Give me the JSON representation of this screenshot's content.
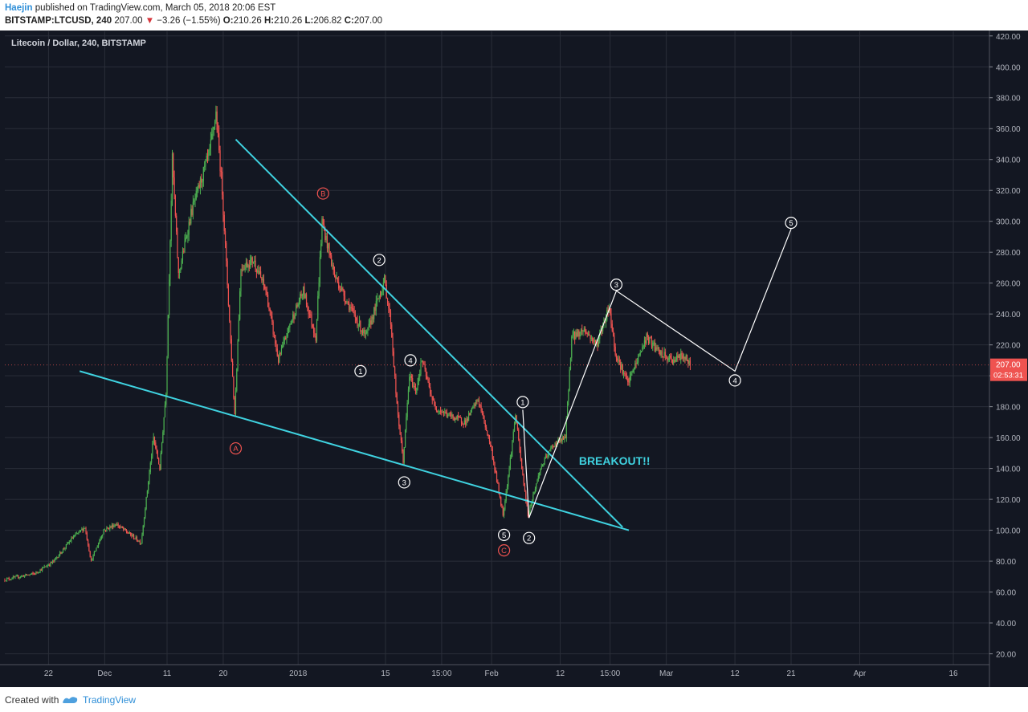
{
  "header": {
    "author": "Haejin",
    "published_text": "published on TradingView.com, March 05, 2018 20:06 EST",
    "symbol": "BITSTAMP:LTCUSD, 240",
    "last": "207.00",
    "change": "−3.26 (−1.55%)",
    "open_label": "O:",
    "open": "210.26",
    "high_label": "H:",
    "high": "210.26",
    "low_label": "L:",
    "low": "206.82",
    "close_label": "C:",
    "close": "207.00"
  },
  "footer": {
    "created_with": "Created with",
    "brand": "TradingView"
  },
  "colors": {
    "background": "#131722",
    "grid": "#2a2e39",
    "up": "#4caf50",
    "down": "#ef5350",
    "trendline": "#3fd2e0",
    "wave": "#ffffff",
    "corrective": "#ef5350",
    "price_tag": "#ef5350"
  },
  "chart_data": {
    "type": "candlestick",
    "title": "Litecoin / Dollar, 240, BITSTAMP",
    "ylim": [
      13,
      423
    ],
    "y_ticks": [
      20,
      40,
      60,
      80,
      100,
      120,
      140,
      160,
      180,
      200,
      220,
      240,
      260,
      280,
      300,
      320,
      340,
      360,
      380,
      400,
      420
    ],
    "y_tick_labels": [
      "20.00",
      "40.00",
      "60.00",
      "80.00",
      "100.00",
      "120.00",
      "140.00",
      "160.00",
      "180.00",
      "200.00",
      "220.00",
      "240.00",
      "260.00",
      "280.00",
      "300.00",
      "320.00",
      "340.00",
      "360.00",
      "380.00",
      "400.00",
      "420.00"
    ],
    "x_start": "2017-11-15",
    "x_ticks": [
      {
        "date": "2017-11-22",
        "label": "22"
      },
      {
        "date": "2017-12-01",
        "label": "Dec"
      },
      {
        "date": "2017-12-11",
        "label": "11"
      },
      {
        "date": "2017-12-20",
        "label": "20"
      },
      {
        "date": "2018-01-01",
        "label": "2018"
      },
      {
        "date": "2018-01-15",
        "label": "15"
      },
      {
        "date": "2018-01-24",
        "label": "15:00"
      },
      {
        "date": "2018-02-01",
        "label": "Feb"
      },
      {
        "date": "2018-02-12",
        "label": "12"
      },
      {
        "date": "2018-02-20",
        "label": "15:00"
      },
      {
        "date": "2018-03-01",
        "label": "Mar"
      },
      {
        "date": "2018-03-12",
        "label": "12"
      },
      {
        "date": "2018-03-21",
        "label": "21"
      },
      {
        "date": "2018-04-01",
        "label": "Apr"
      },
      {
        "date": "2018-04-16",
        "label": "16"
      }
    ],
    "price_path": [
      [
        "2017-11-15",
        68
      ],
      [
        "2017-11-20",
        72
      ],
      [
        "2017-11-23",
        80
      ],
      [
        "2017-11-26",
        95
      ],
      [
        "2017-11-28",
        102
      ],
      [
        "2017-11-29",
        80
      ],
      [
        "2017-12-01",
        100
      ],
      [
        "2017-12-03",
        104
      ],
      [
        "2017-12-05",
        98
      ],
      [
        "2017-12-07",
        92
      ],
      [
        "2017-12-09",
        160
      ],
      [
        "2017-12-10",
        140
      ],
      [
        "2017-12-11",
        190
      ],
      [
        "2017-12-12",
        340
      ],
      [
        "2017-12-13",
        265
      ],
      [
        "2017-12-15",
        305
      ],
      [
        "2017-12-18",
        345
      ],
      [
        "2017-12-19",
        370
      ],
      [
        "2017-12-20",
        320
      ],
      [
        "2017-12-22",
        175
      ],
      [
        "2017-12-23",
        270
      ],
      [
        "2017-12-25",
        275
      ],
      [
        "2017-12-27",
        255
      ],
      [
        "2017-12-29",
        210
      ],
      [
        "2017-12-31",
        235
      ],
      [
        "2018-01-02",
        255
      ],
      [
        "2018-01-04",
        225
      ],
      [
        "2018-01-05",
        300
      ],
      [
        "2018-01-07",
        265
      ],
      [
        "2018-01-10",
        240
      ],
      [
        "2018-01-12",
        225
      ],
      [
        "2018-01-14",
        250
      ],
      [
        "2018-01-15",
        262
      ],
      [
        "2018-01-16",
        235
      ],
      [
        "2018-01-17",
        180
      ],
      [
        "2018-01-18",
        145
      ],
      [
        "2018-01-19",
        200
      ],
      [
        "2018-01-20",
        190
      ],
      [
        "2018-01-21",
        210
      ],
      [
        "2018-01-23",
        180
      ],
      [
        "2018-01-25",
        175
      ],
      [
        "2018-01-28",
        170
      ],
      [
        "2018-01-30",
        185
      ],
      [
        "2018-02-01",
        155
      ],
      [
        "2018-02-03",
        110
      ],
      [
        "2018-02-04",
        140
      ],
      [
        "2018-02-05",
        175
      ],
      [
        "2018-02-06",
        140
      ],
      [
        "2018-02-07",
        110
      ],
      [
        "2018-02-09",
        140
      ],
      [
        "2018-02-11",
        155
      ],
      [
        "2018-02-13",
        160
      ],
      [
        "2018-02-14",
        225
      ],
      [
        "2018-02-16",
        230
      ],
      [
        "2018-02-18",
        220
      ],
      [
        "2018-02-20",
        245
      ],
      [
        "2018-02-21",
        215
      ],
      [
        "2018-02-23",
        195
      ],
      [
        "2018-02-25",
        215
      ],
      [
        "2018-02-26",
        225
      ],
      [
        "2018-02-28",
        215
      ],
      [
        "2018-03-02",
        210
      ],
      [
        "2018-03-04",
        213
      ],
      [
        "2018-03-05",
        207
      ]
    ],
    "trendlines": [
      {
        "from": [
          "2017-12-22",
          353
        ],
        "to": [
          "2018-02-22",
          102
        ]
      },
      {
        "from": [
          "2017-11-27",
          203
        ],
        "to": [
          "2018-02-23",
          100
        ]
      }
    ],
    "wave_path": [
      [
        "2018-02-06",
        178
      ],
      [
        "2018-02-07",
        108
      ],
      [
        "2018-02-21",
        255
      ],
      [
        "2018-03-12",
        203
      ],
      [
        "2018-03-21",
        295
      ]
    ],
    "last_price_tag": {
      "price": 207,
      "label": "207.00",
      "countdown": "02:53:31"
    },
    "annotations": [
      {
        "type": "corrective",
        "label": "A",
        "date": "2017-12-22",
        "price": 153
      },
      {
        "type": "corrective",
        "label": "B",
        "date": "2018-01-05",
        "price": 318
      },
      {
        "type": "corrective",
        "label": "C",
        "date": "2018-02-03",
        "price": 87
      },
      {
        "type": "impulse",
        "label": "1",
        "date": "2018-01-11",
        "price": 203
      },
      {
        "type": "impulse",
        "label": "2",
        "date": "2018-01-14",
        "price": 275
      },
      {
        "type": "impulse",
        "label": "3",
        "date": "2018-01-18",
        "price": 131
      },
      {
        "type": "impulse",
        "label": "4",
        "date": "2018-01-19",
        "price": 210
      },
      {
        "type": "impulse",
        "label": "5",
        "date": "2018-02-03",
        "price": 97
      },
      {
        "type": "impulse",
        "label": "1",
        "date": "2018-02-06",
        "price": 183
      },
      {
        "type": "impulse",
        "label": "2",
        "date": "2018-02-07",
        "price": 95
      },
      {
        "type": "impulse",
        "label": "3",
        "date": "2018-02-21",
        "price": 259
      },
      {
        "type": "impulse",
        "label": "4",
        "date": "2018-03-12",
        "price": 197
      },
      {
        "type": "impulse",
        "label": "5",
        "date": "2018-03-21",
        "price": 299
      }
    ],
    "text_annotations": [
      {
        "text": "BREAKOUT!!",
        "date": "2018-02-15",
        "price": 145
      }
    ]
  }
}
